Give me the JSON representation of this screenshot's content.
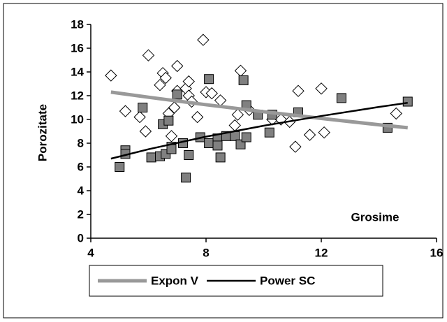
{
  "chart_data": {
    "type": "scatter",
    "x_label": "Grosime",
    "y_label": "Porozitate",
    "xlim": [
      4,
      16
    ],
    "xticks": [
      4,
      8,
      12,
      16
    ],
    "ylim": [
      0,
      18
    ],
    "yticks": [
      0,
      2,
      4,
      6,
      8,
      10,
      12,
      14,
      16,
      18
    ],
    "series": [
      {
        "marker": "diamond",
        "color": "#ffffff",
        "x": [
          4.7,
          5.2,
          5.7,
          5.9,
          6.0,
          6.4,
          6.5,
          6.6,
          6.7,
          6.8,
          6.9,
          7.0,
          7.0,
          7.3,
          7.4,
          7.4,
          7.5,
          7.7,
          7.9,
          8.0,
          8.2,
          8.5,
          9.0,
          9.1,
          9.2,
          9.5,
          10.3,
          10.6,
          10.9,
          11.1,
          11.2,
          11.6,
          12.0,
          12.1,
          14.6
        ],
        "values": [
          13.7,
          10.7,
          10.2,
          9.0,
          15.4,
          12.9,
          13.9,
          13.5,
          10.5,
          8.6,
          11.0,
          14.5,
          12.4,
          12.6,
          12.0,
          13.2,
          11.5,
          10.2,
          16.7,
          12.3,
          12.2,
          11.6,
          9.5,
          10.4,
          14.1,
          10.8,
          10.0,
          10.0,
          9.8,
          7.7,
          12.4,
          8.7,
          12.6,
          8.9,
          10.5
        ]
      },
      {
        "marker": "square",
        "color": "#808080",
        "x": [
          5.0,
          5.2,
          5.2,
          5.8,
          6.1,
          6.4,
          6.5,
          6.6,
          6.7,
          6.8,
          6.8,
          7.0,
          7.2,
          7.3,
          7.4,
          7.8,
          8.1,
          8.1,
          8.4,
          8.4,
          8.5,
          8.7,
          9.0,
          9.2,
          9.3,
          9.4,
          9.4,
          9.8,
          10.2,
          10.3,
          11.2,
          12.7,
          14.3,
          15.0
        ],
        "values": [
          6.0,
          7.4,
          7.1,
          11.0,
          6.8,
          6.9,
          9.6,
          7.1,
          9.9,
          7.7,
          7.5,
          12.1,
          8.0,
          5.1,
          7.0,
          8.5,
          13.4,
          8.0,
          8.4,
          7.8,
          6.8,
          8.6,
          8.6,
          7.9,
          13.3,
          11.2,
          8.5,
          10.4,
          8.9,
          10.4,
          10.6,
          11.8,
          9.3,
          11.5
        ]
      },
      {
        "name": "Expon V",
        "marker": "line",
        "color": "#999999",
        "x": [
          4.7,
          6,
          8,
          10,
          12,
          14,
          15
        ],
        "values": [
          12.3,
          11.87,
          11.24,
          10.65,
          10.09,
          9.55,
          9.3
        ]
      },
      {
        "name": "Power SC",
        "marker": "line",
        "color": "#000000",
        "x": [
          4.7,
          6,
          8,
          10,
          12,
          14,
          15
        ],
        "values": [
          6.7,
          7.49,
          8.55,
          9.47,
          10.29,
          11.05,
          11.4
        ]
      }
    ]
  }
}
